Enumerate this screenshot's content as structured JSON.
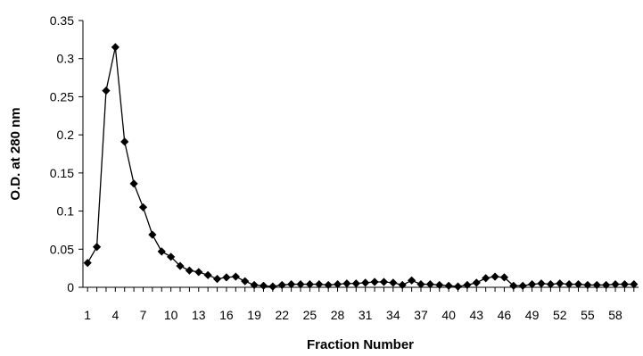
{
  "chart_data": {
    "type": "line",
    "title": "",
    "xlabel": "Fraction Number",
    "ylabel": "O.D. at 280 nm",
    "xlim": [
      0.5,
      60.5
    ],
    "ylim": [
      0,
      0.35
    ],
    "yticks": [
      0,
      0.05,
      0.1,
      0.15,
      0.2,
      0.25,
      0.3,
      0.35
    ],
    "ytick_labels": [
      "0",
      "0.05",
      "0.1",
      "0.15",
      "0.2",
      "0.25",
      "0.3",
      "0.35"
    ],
    "xtick_labels": [
      "1",
      "4",
      "7",
      "10",
      "13",
      "16",
      "19",
      "22",
      "25",
      "28",
      "31",
      "34",
      "37",
      "40",
      "43",
      "46",
      "49",
      "52",
      "55",
      "58"
    ],
    "grid": false,
    "legend": "none",
    "series": [
      {
        "color": "#000000",
        "marker": "diamond",
        "x": [
          1,
          2,
          3,
          4,
          5,
          6,
          7,
          8,
          9,
          10,
          11,
          12,
          13,
          14,
          15,
          16,
          17,
          18,
          19,
          20,
          21,
          22,
          23,
          24,
          25,
          26,
          27,
          28,
          29,
          30,
          31,
          32,
          33,
          34,
          35,
          36,
          37,
          38,
          39,
          40,
          41,
          42,
          43,
          44,
          45,
          46,
          47,
          48,
          49,
          50,
          51,
          52,
          53,
          54,
          55,
          56,
          57,
          58,
          59,
          60
        ],
        "y": [
          0.032,
          0.053,
          0.258,
          0.315,
          0.191,
          0.136,
          0.105,
          0.069,
          0.047,
          0.04,
          0.028,
          0.022,
          0.02,
          0.016,
          0.011,
          0.013,
          0.014,
          0.008,
          0.003,
          0.002,
          0.001,
          0.003,
          0.004,
          0.004,
          0.004,
          0.004,
          0.003,
          0.004,
          0.005,
          0.005,
          0.006,
          0.007,
          0.007,
          0.006,
          0.003,
          0.009,
          0.004,
          0.004,
          0.003,
          0.002,
          0.001,
          0.003,
          0.006,
          0.012,
          0.014,
          0.013,
          0.002,
          0.002,
          0.004,
          0.005,
          0.004,
          0.005,
          0.004,
          0.004,
          0.003,
          0.003,
          0.003,
          0.004,
          0.004,
          0.004
        ]
      }
    ]
  }
}
